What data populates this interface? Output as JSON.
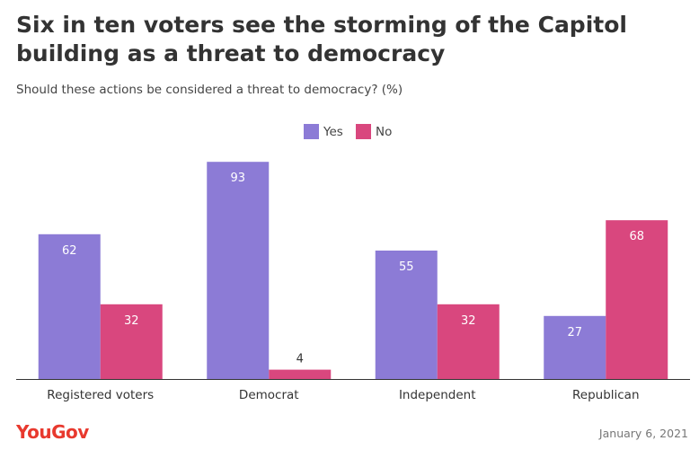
{
  "title": "Six in ten voters see the storming of the Capitol building as a threat to democracy",
  "subtitle": "Should these actions be considered a threat to democracy? (%)",
  "footer": {
    "brand": "YouGov",
    "date": "January 6, 2021"
  },
  "colors": {
    "yes": "#8c7bd6",
    "no": "#d9477e",
    "brand": "#e8392e",
    "axis": "#333333"
  },
  "chart_data": {
    "type": "bar",
    "categories": [
      "Registered voters",
      "Democrat",
      "Independent",
      "Republican"
    ],
    "series": [
      {
        "name": "Yes",
        "values": [
          62,
          93,
          55,
          27
        ]
      },
      {
        "name": "No",
        "values": [
          32,
          4,
          32,
          68
        ]
      }
    ],
    "ylim": [
      0,
      100
    ],
    "grid": false,
    "legend": "top-center",
    "data_labels": true
  }
}
